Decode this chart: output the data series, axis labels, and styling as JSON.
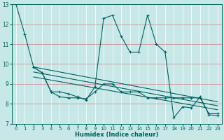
{
  "xlabel": "Humidex (Indice chaleur)",
  "bg_color": "#c8e8e8",
  "grid_color": "#e8a0a0",
  "line_color": "#006060",
  "xlim": [
    -0.5,
    23.5
  ],
  "ylim": [
    7,
    13
  ],
  "xticks": [
    0,
    1,
    2,
    3,
    4,
    5,
    6,
    7,
    8,
    9,
    10,
    11,
    12,
    13,
    14,
    15,
    16,
    17,
    18,
    19,
    20,
    21,
    22,
    23
  ],
  "yticks": [
    7,
    8,
    9,
    10,
    11,
    12,
    13
  ],
  "line1_x": [
    0,
    1,
    2,
    3,
    4,
    5,
    6,
    7,
    8,
    9,
    10,
    11,
    12,
    13,
    14,
    15,
    16,
    17,
    18,
    19,
    20,
    21,
    22,
    23
  ],
  "line1_y": [
    13.0,
    11.5,
    9.85,
    9.55,
    8.6,
    8.35,
    8.3,
    8.3,
    8.25,
    8.6,
    9.0,
    9.0,
    8.6,
    8.6,
    8.6,
    8.3,
    8.3,
    8.3,
    8.3,
    8.3,
    8.3,
    8.3,
    7.5,
    7.5
  ],
  "line2_x": [
    2,
    3,
    4,
    5,
    6,
    7,
    8,
    9,
    10,
    11,
    12,
    13,
    14,
    15,
    16,
    17,
    18,
    19,
    20,
    21,
    22,
    23
  ],
  "line2_y": [
    9.85,
    9.55,
    8.6,
    8.6,
    8.5,
    8.35,
    8.2,
    8.85,
    12.3,
    12.45,
    11.4,
    10.6,
    10.6,
    12.45,
    11.0,
    10.6,
    7.3,
    7.85,
    7.8,
    8.35,
    7.45,
    7.4
  ],
  "line2_markers_x": [
    2,
    3,
    4,
    5,
    6,
    7,
    8,
    9,
    10,
    11,
    12,
    13,
    14,
    15,
    16,
    17,
    18,
    19,
    20,
    21,
    22,
    23
  ],
  "start_x": 2,
  "start_y": 9.85,
  "trend1_x": [
    2,
    23
  ],
  "trend1_y": [
    9.85,
    8.1
  ],
  "trend2_x": [
    2,
    23
  ],
  "trend2_y": [
    9.6,
    7.9
  ],
  "trend3_x": [
    2,
    23
  ],
  "trend3_y": [
    9.35,
    7.7
  ]
}
